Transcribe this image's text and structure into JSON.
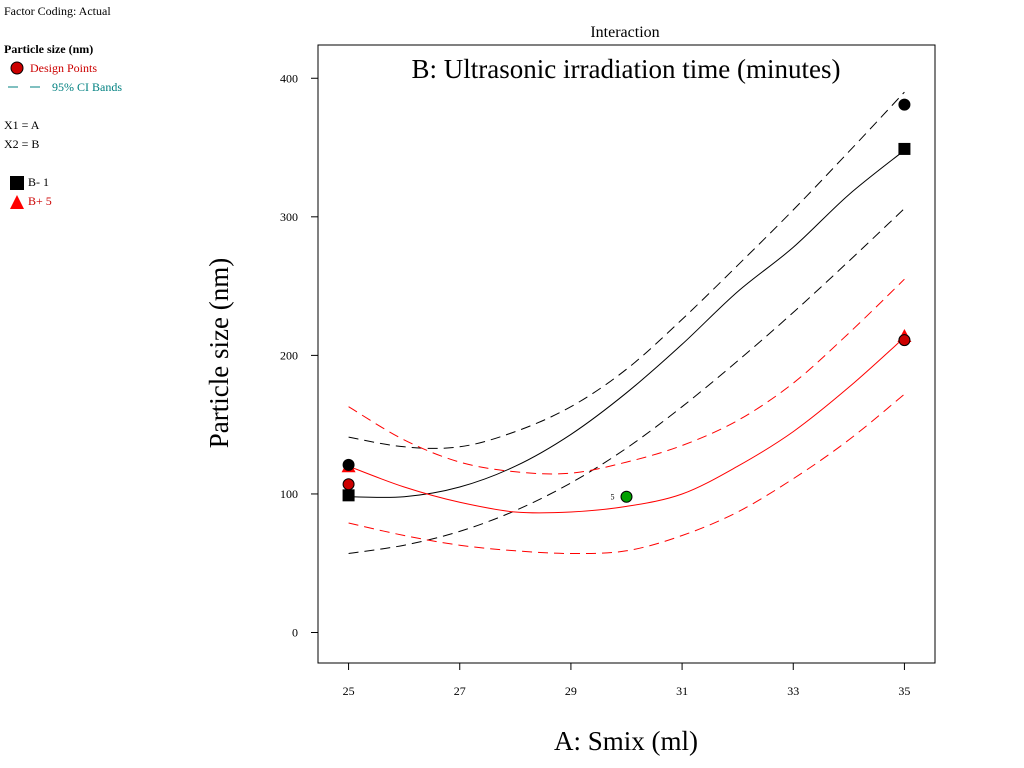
{
  "legend": {
    "factor_coding": "Factor Coding: Actual",
    "response": "Particle size (nm)",
    "design_points": "Design Points",
    "ci_bands": "95% CI Bands",
    "x1": "X1 = A",
    "x2": "X2 = B",
    "b_low": "B- 1",
    "b_high": "B+ 5"
  },
  "colors": {
    "b_low": "#000000",
    "b_high": "#ff0000",
    "center_point": "#00a000",
    "design_points_red": "#cc0000",
    "ci_text": "#008080"
  },
  "chart_data": {
    "type": "line",
    "title": "Interaction",
    "subtitle": "B: Ultrasonic irradiation time (minutes)",
    "xlabel": "A: Smix (ml)",
    "ylabel": "Particle size (nm)",
    "xlim": [
      24.45,
      35.55
    ],
    "ylim": [
      -22,
      424
    ],
    "xticks": [
      25,
      27,
      29,
      31,
      33,
      35
    ],
    "yticks": [
      0,
      100,
      200,
      300,
      400
    ],
    "grid": false,
    "legend_position": "left",
    "x": [
      25,
      26,
      27,
      28,
      29,
      30,
      31,
      32,
      33,
      34,
      35
    ],
    "series": [
      {
        "name": "B- 1",
        "color": "#000000",
        "values": [
          98,
          98,
          105,
          120,
          143,
          173,
          208,
          246,
          278,
          316,
          348
        ],
        "ci_lower": [
          57,
          63,
          73,
          88,
          108,
          133,
          163,
          196,
          231,
          268,
          306
        ],
        "ci_upper": [
          141,
          134,
          134,
          145,
          163,
          190,
          226,
          265,
          305,
          347,
          390
        ],
        "design_points": [
          {
            "x": 25,
            "y": 121,
            "marker": "circle"
          },
          {
            "x": 35,
            "y": 381,
            "marker": "circle"
          }
        ],
        "marker_points": [
          {
            "x": 25,
            "y": 99,
            "marker": "square"
          },
          {
            "x": 35,
            "y": 349,
            "marker": "square"
          }
        ]
      },
      {
        "name": "B+ 5",
        "color": "#ff0000",
        "values": [
          120,
          105,
          94,
          87,
          87,
          91,
          100,
          120,
          145,
          177,
          213
        ],
        "ci_lower": [
          79,
          70,
          63,
          59,
          57,
          59,
          70,
          87,
          111,
          139,
          172
        ],
        "ci_upper": [
          163,
          139,
          123,
          116,
          115,
          123,
          135,
          153,
          180,
          216,
          255
        ],
        "design_points": [
          {
            "x": 25,
            "y": 107,
            "marker": "circle"
          },
          {
            "x": 35,
            "y": 211,
            "marker": "circle"
          }
        ],
        "marker_points": [
          {
            "x": 25,
            "y": 120,
            "marker": "triangle"
          },
          {
            "x": 35,
            "y": 214,
            "marker": "triangle"
          }
        ]
      }
    ],
    "center_point": {
      "x": 30,
      "y": 98,
      "label": "5",
      "color": "#00a000"
    }
  }
}
